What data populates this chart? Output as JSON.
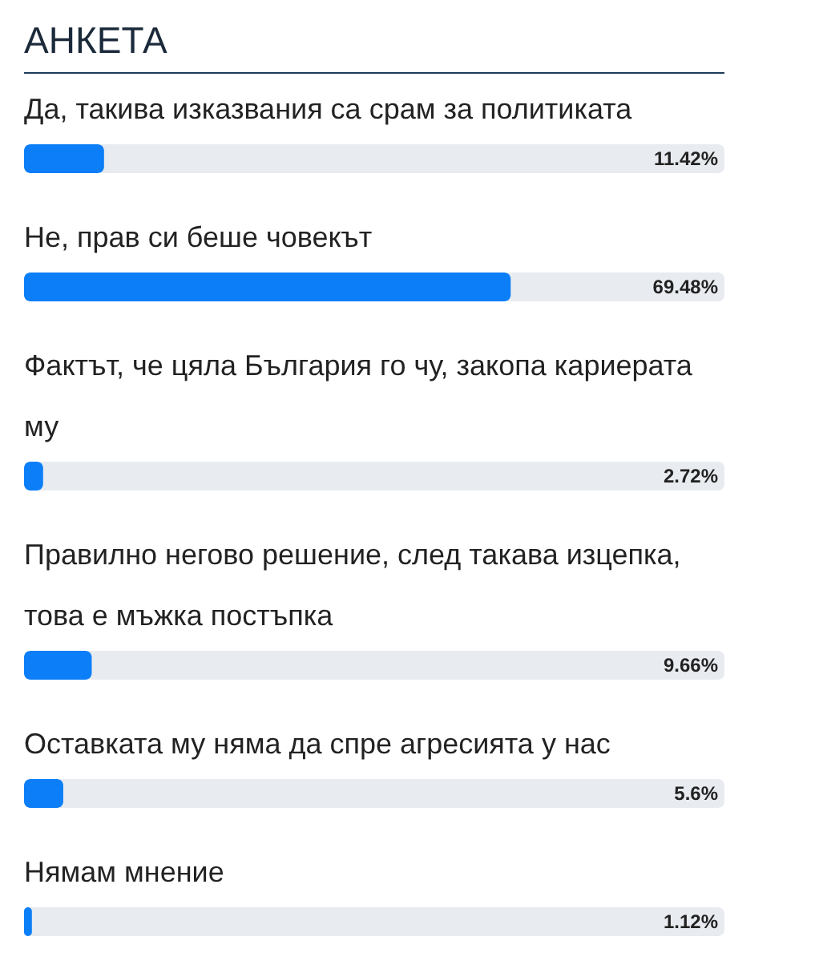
{
  "chart_data": {
    "type": "bar",
    "orientation": "horizontal",
    "title": "АНКЕТА",
    "categories": [
      "Да, такива изказвания са срам за политиката",
      "Не, прав си беше човекът",
      "Фактът, че цяла България го чу, закопа кариерата му",
      "Правилно негово решение, след такава изцепка, това е мъжка постъпка",
      "Оставката му няма да спре агресията у нас",
      "Нямам мнение"
    ],
    "values": [
      11.42,
      69.48,
      2.72,
      9.66,
      5.6,
      1.12
    ],
    "value_labels": [
      "11.42%",
      "69.48%",
      "2.72%",
      "9.66%",
      "5.6%",
      "1.12%"
    ],
    "color": "#0b7ef8",
    "xlim": [
      0,
      100
    ]
  }
}
